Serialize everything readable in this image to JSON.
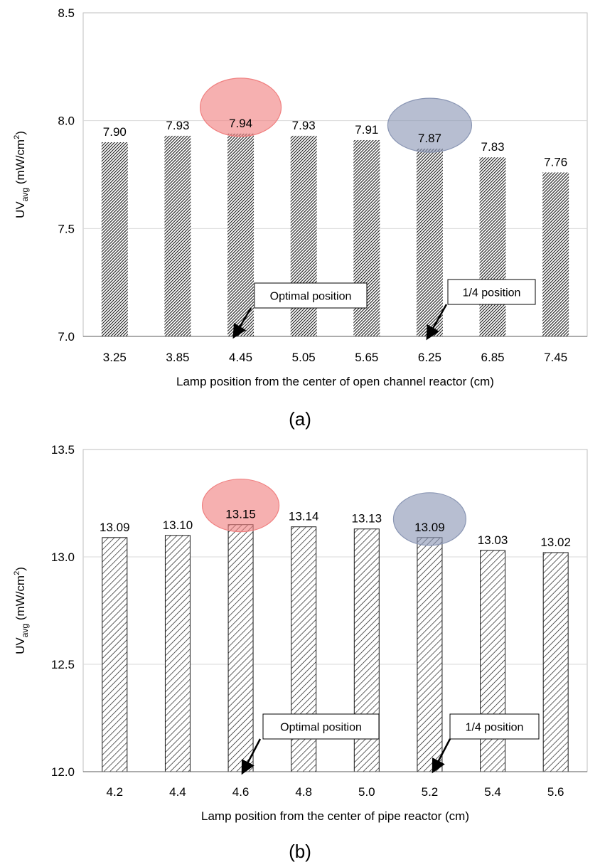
{
  "chart_data": [
    {
      "type": "bar",
      "panel_label": "(a)",
      "categories": [
        "3.25",
        "3.85",
        "4.45",
        "5.05",
        "5.65",
        "6.25",
        "6.85",
        "7.45"
      ],
      "values": [
        7.9,
        7.93,
        7.94,
        7.93,
        7.91,
        7.87,
        7.83,
        7.76
      ],
      "value_labels": [
        "7.90",
        "7.93",
        "7.94",
        "7.93",
        "7.91",
        "7.87",
        "7.83",
        "7.76"
      ],
      "xlabel": "Lamp position from the center of open channel reactor (cm)",
      "ylabel": {
        "main": "UV",
        "sub": "avg",
        "unit": " (mW/cm",
        "sup": "2",
        "close": ")"
      },
      "ylim": [
        7.0,
        8.5
      ],
      "yticks": [
        "7.0",
        "7.5",
        "8.0",
        "8.5"
      ],
      "bar_pattern": "dense-hatch",
      "grid": true,
      "annotations": [
        {
          "text": "Optimal position",
          "category_index": 2
        },
        {
          "text": "1/4 position",
          "category_index": 5
        }
      ],
      "highlights": [
        {
          "category_index": 2,
          "color": "#f08080"
        },
        {
          "category_index": 5,
          "color": "#8a96b4"
        }
      ]
    },
    {
      "type": "bar",
      "panel_label": "(b)",
      "categories": [
        "4.2",
        "4.4",
        "4.6",
        "4.8",
        "5.0",
        "5.2",
        "5.4",
        "5.6"
      ],
      "values": [
        13.09,
        13.1,
        13.15,
        13.14,
        13.13,
        13.09,
        13.03,
        13.02
      ],
      "value_labels": [
        "13.09",
        "13.10",
        "13.15",
        "13.14",
        "13.13",
        "13.09",
        "13.03",
        "13.02"
      ],
      "xlabel": "Lamp position from the center of pipe reactor (cm)",
      "ylabel": {
        "main": "UV",
        "sub": "avg",
        "unit": " (mW/cm",
        "sup": "2",
        "close": ")"
      },
      "ylim": [
        12.0,
        13.5
      ],
      "yticks": [
        "12.0",
        "12.5",
        "13.0",
        "13.5"
      ],
      "bar_pattern": "light-hatch",
      "grid": true,
      "annotations": [
        {
          "text": "Optimal position",
          "category_index": 2
        },
        {
          "text": "1/4 position",
          "category_index": 5
        }
      ],
      "highlights": [
        {
          "category_index": 2,
          "color": "#f08080"
        },
        {
          "category_index": 5,
          "color": "#8a96b4"
        }
      ]
    }
  ]
}
